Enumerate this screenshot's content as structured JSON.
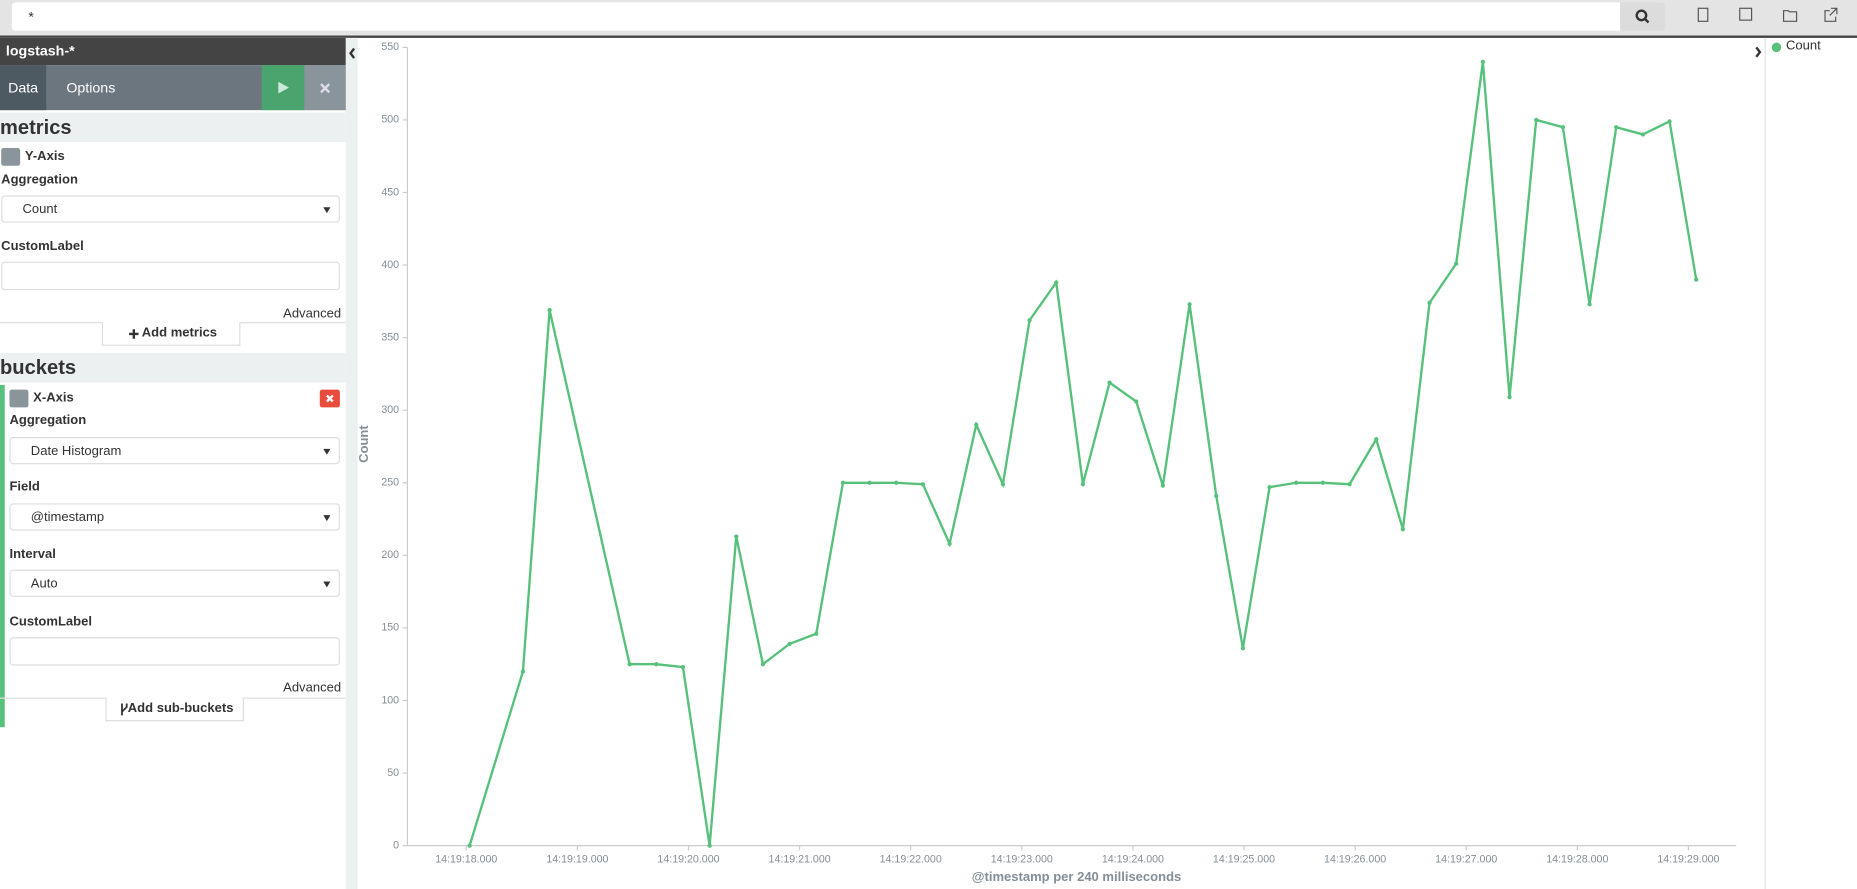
{
  "search": {
    "query": "*"
  },
  "sidebar": {
    "index": "logstash-*",
    "tabs": [
      "Data",
      "Options"
    ],
    "metrics": {
      "title": "metrics",
      "axis": "Y-Axis",
      "aggregation_label": "Aggregation",
      "aggregation": "Count",
      "custom_label": "CustomLabel",
      "advanced": "Advanced",
      "add_button": "Add metrics"
    },
    "buckets": {
      "title": "buckets",
      "axis": "X-Axis",
      "aggregation_label": "Aggregation",
      "aggregation": "Date Histogram",
      "field_label": "Field",
      "field": "@timestamp",
      "interval_label": "Interval",
      "interval": "Auto",
      "custom_label": "CustomLabel",
      "advanced": "Advanced",
      "add_button": "Add sub-buckets"
    }
  },
  "chart_data": {
    "type": "line",
    "x_label": "@timestamp per 240 milliseconds",
    "y_label": "Count",
    "x": [
      18.03,
      18.51,
      18.75,
      19.47,
      19.71,
      19.95,
      20.19,
      20.43,
      20.67,
      20.91,
      21.15,
      21.39,
      21.63,
      21.87,
      22.11,
      22.35,
      22.59,
      22.83,
      23.07,
      23.31,
      23.55,
      23.79,
      24.03,
      24.27,
      24.51,
      24.75,
      24.99,
      25.23,
      25.47,
      25.71,
      25.95,
      26.19,
      26.43,
      26.67,
      26.91,
      27.15,
      27.39,
      27.63,
      27.87,
      28.11,
      28.35,
      28.59,
      28.83,
      29.07
    ],
    "series": [
      {
        "name": "Count",
        "color": "#57c17b",
        "values": [
          0,
          120,
          369,
          125,
          125,
          123,
          0,
          213,
          125,
          139,
          146,
          250,
          250,
          250,
          249,
          208,
          290,
          249,
          362,
          388,
          249,
          319,
          306,
          248,
          373,
          241,
          136,
          247,
          250,
          250,
          249,
          280,
          218,
          374,
          401,
          540,
          309,
          500,
          495,
          373,
          495,
          490,
          499,
          390
        ]
      }
    ],
    "xlim": [
      17.47,
      29.43
    ],
    "ylim": [
      0,
      550
    ],
    "xticks": [
      {
        "value": 18,
        "label": "14:19:18.000"
      },
      {
        "value": 19,
        "label": "14:19:19.000"
      },
      {
        "value": 20,
        "label": "14:19:20.000"
      },
      {
        "value": 21,
        "label": "14:19:21.000"
      },
      {
        "value": 22,
        "label": "14:19:22.000"
      },
      {
        "value": 23,
        "label": "14:19:23.000"
      },
      {
        "value": 24,
        "label": "14:19:24.000"
      },
      {
        "value": 25,
        "label": "14:19:25.000"
      },
      {
        "value": 26,
        "label": "14:19:26.000"
      },
      {
        "value": 27,
        "label": "14:19:27.000"
      },
      {
        "value": 28,
        "label": "14:19:28.000"
      },
      {
        "value": 29,
        "label": "14:19:29.000"
      }
    ],
    "yticks": [
      0,
      50,
      100,
      150,
      200,
      250,
      300,
      350,
      400,
      450,
      500,
      550
    ],
    "grid": false,
    "legend": "right",
    "markers": true
  }
}
